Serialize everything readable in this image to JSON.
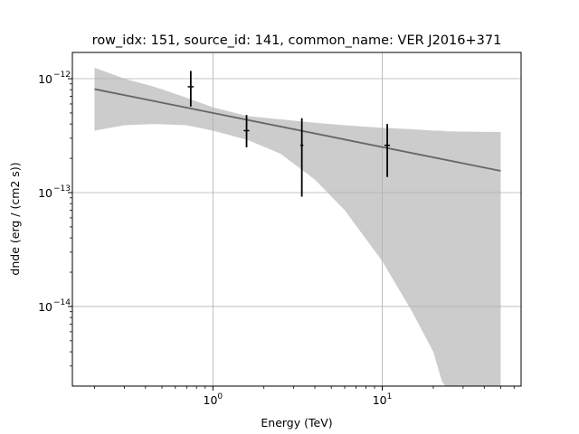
{
  "chart_data": {
    "type": "line",
    "title": "row_idx: 151, source_id: 141, common_name: VER J2016+371",
    "xlabel": "Energy (TeV)",
    "ylabel": "dnde (erg / (cm2 s))",
    "xscale": "log",
    "yscale": "log",
    "xlim": [
      0.148,
      66
    ],
    "ylim": [
      2e-15,
      1.7e-12
    ],
    "grid": true,
    "x_ticks": [
      {
        "value": 1,
        "base": "10",
        "exp": "0"
      },
      {
        "value": 10,
        "base": "10",
        "exp": "1"
      }
    ],
    "y_ticks": [
      {
        "value": 1e-14,
        "base": "10",
        "exp": "−14"
      },
      {
        "value": 1e-13,
        "base": "10",
        "exp": "−13"
      },
      {
        "value": 1e-12,
        "base": "10",
        "exp": "−12"
      }
    ],
    "model": {
      "color": "#666666",
      "x": [
        0.2,
        50
      ],
      "y": [
        8.1e-13,
        1.55e-13
      ]
    },
    "band": {
      "color": "#cccccc",
      "x": [
        0.2,
        0.3,
        0.45,
        0.7,
        1.0,
        1.6,
        2.5,
        4.0,
        6.0,
        10.0,
        15.0,
        20.0,
        22.5,
        23.5,
        50
      ],
      "upper": [
        1.25e-12,
        1e-12,
        8.5e-13,
        6.8e-13,
        5.6e-13,
        4.7e-13,
        4.4e-13,
        4.1e-13,
        3.9e-13,
        3.7e-13,
        3.6e-13,
        3.5e-13,
        3.5e-13,
        3.45e-13,
        3.4e-13
      ],
      "lower": [
        3.5e-13,
        3.9e-13,
        4e-13,
        3.9e-13,
        3.5e-13,
        2.9e-13,
        2.2e-13,
        1.3e-13,
        7e-14,
        2.5e-14,
        9e-15,
        4e-15,
        2.2e-15,
        2e-15,
        2e-15
      ]
    },
    "points": {
      "color": "#000000",
      "x": [
        0.74,
        1.58,
        3.35,
        10.7
      ],
      "y": [
        8.5e-13,
        3.5e-13,
        2.6e-13,
        2.6e-13
      ],
      "ylow": [
        5.7e-13,
        2.5e-13,
        9.2e-14,
        1.37e-13
      ],
      "yhigh": [
        1.17e-12,
        4.8e-13,
        4.5e-13,
        4e-13
      ],
      "xlow": [
        0.71,
        1.52,
        3.28,
        10.3
      ],
      "xhigh": [
        0.77,
        1.64,
        3.42,
        11.1
      ]
    }
  }
}
